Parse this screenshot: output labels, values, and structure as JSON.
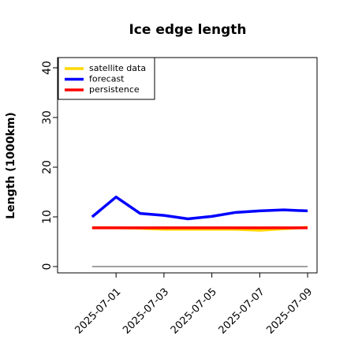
{
  "chart_data": {
    "type": "line",
    "title": "Ice edge length",
    "ylabel": "Length (1000km)",
    "x": [
      "2025-06-30",
      "2025-07-01",
      "2025-07-02",
      "2025-07-03",
      "2025-07-04",
      "2025-07-05",
      "2025-07-06",
      "2025-07-07",
      "2025-07-08",
      "2025-07-09"
    ],
    "series": [
      {
        "name": "satellite data",
        "color": "#FFD700",
        "values": [
          7.8,
          7.8,
          7.7,
          7.5,
          7.5,
          7.5,
          7.5,
          7.3,
          7.6,
          7.9
        ]
      },
      {
        "name": "forecast",
        "color": "#0000FF",
        "values": [
          10,
          14,
          10.7,
          10.3,
          9.6,
          10.1,
          10.9,
          11.2,
          11.4,
          11.2
        ]
      },
      {
        "name": "persistence",
        "color": "#FF0000",
        "values": [
          7.8,
          7.8,
          7.8,
          7.8,
          7.8,
          7.8,
          7.8,
          7.8,
          7.8,
          7.8
        ]
      }
    ],
    "hline": 0,
    "hline_color": "#808080",
    "xlim": [
      "2025-06-28T13:22Z",
      "2025-07-09T09:26Z"
    ],
    "xticks": [
      "2025-07-01",
      "2025-07-03",
      "2025-07-05",
      "2025-07-07",
      "2025-07-09"
    ],
    "highlight_tick": "2025-07-01",
    "highlight_color": "#228B22",
    "ylim": [
      -1.27,
      42.06
    ],
    "yticks": [
      0,
      10,
      20,
      30,
      40
    ],
    "legend": "top-left"
  }
}
